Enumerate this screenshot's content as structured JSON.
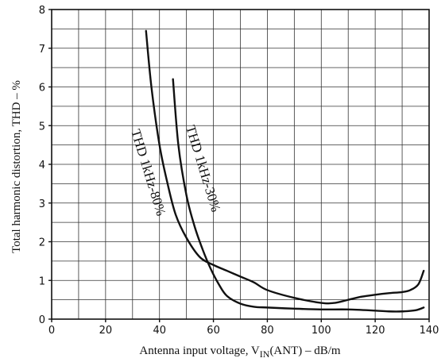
{
  "chart_data": {
    "type": "line",
    "xlabel": {
      "main": "Antenna input voltage, V",
      "sub": "IN",
      "tail": "(ANT)   –   dB/m"
    },
    "ylabel": "Total harmonic distortion, THD   –   %",
    "xlim": [
      0,
      140
    ],
    "ylim": [
      0,
      8
    ],
    "x_ticks": [
      0,
      20,
      40,
      60,
      80,
      100,
      120,
      140
    ],
    "y_ticks": [
      0,
      1,
      2,
      3,
      4,
      5,
      6,
      7,
      8
    ],
    "x_tick_labels": [
      "0",
      "20",
      "40",
      "60",
      "80",
      "100",
      "120",
      "140"
    ],
    "y_tick_labels": [
      "0",
      "1",
      "2",
      "3",
      "4",
      "5",
      "6",
      "7",
      "8"
    ],
    "grid": true,
    "series": [
      {
        "name": "THD 1kHz-80%",
        "x": [
          35,
          37,
          40,
          43,
          46,
          50,
          55,
          60,
          65,
          70,
          75,
          80,
          90,
          100,
          105,
          110,
          115,
          120,
          125,
          130,
          133,
          136,
          138
        ],
        "y": [
          7.45,
          6.0,
          4.5,
          3.5,
          2.7,
          2.1,
          1.6,
          1.4,
          1.25,
          1.1,
          0.95,
          0.75,
          0.55,
          0.42,
          0.42,
          0.5,
          0.58,
          0.63,
          0.67,
          0.7,
          0.75,
          0.9,
          1.25
        ]
      },
      {
        "name": "THD 1kHz-30%",
        "x": [
          45,
          47,
          50,
          53,
          56,
          59,
          62,
          65,
          70,
          75,
          80,
          90,
          100,
          110,
          120,
          125,
          130,
          135,
          138
        ],
        "y": [
          6.2,
          4.5,
          3.2,
          2.4,
          1.8,
          1.3,
          0.9,
          0.6,
          0.4,
          0.32,
          0.3,
          0.27,
          0.25,
          0.25,
          0.22,
          0.2,
          0.2,
          0.23,
          0.3
        ]
      }
    ]
  }
}
